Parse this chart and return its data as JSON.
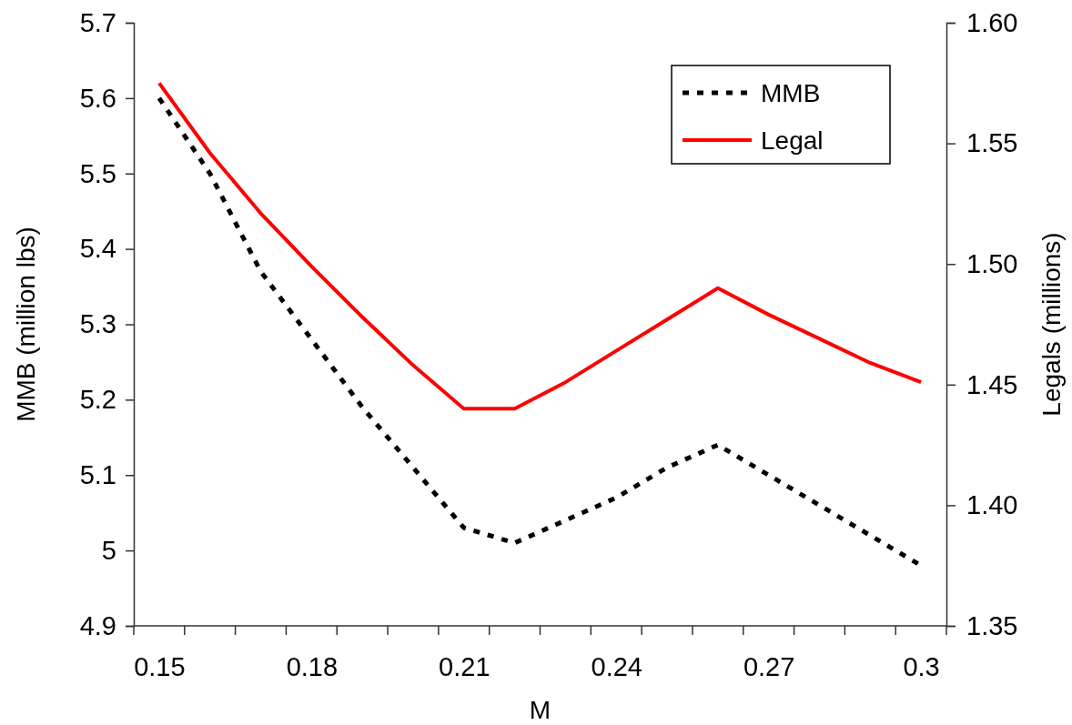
{
  "chart_data": {
    "type": "line",
    "xlabel": "M",
    "ylabel": "MMB (million lbs)",
    "y2label": "Legals (millions)",
    "categories": [
      "0.15",
      null,
      null,
      "0.18",
      null,
      null,
      "0.21",
      null,
      null,
      "0.24",
      null,
      null,
      "0.27",
      null,
      null,
      "0.3"
    ],
    "ylim": [
      4.9,
      5.7
    ],
    "yticks": [
      4.9,
      5,
      5.1,
      5.2,
      5.3,
      5.4,
      5.5,
      5.6,
      5.7
    ],
    "y2lim": [
      1.35,
      1.6
    ],
    "y2ticks": [
      1.35,
      {
        "value": 1.4,
        "label": "1.40"
      },
      1.45,
      {
        "value": 1.5,
        "label": "1.50"
      },
      1.55,
      {
        "value": 1.6,
        "label": "1.60"
      }
    ],
    "series": [
      {
        "name": "MMB",
        "color": "#000000",
        "line_style": "dotted",
        "axis": "y",
        "values": [
          5.6,
          5.5,
          5.37,
          5.28,
          5.19,
          5.11,
          5.03,
          5.01,
          5.04,
          5.07,
          5.11,
          5.14,
          5.1,
          5.06,
          5.02,
          4.98
        ]
      },
      {
        "name": "Legal",
        "color": "#ff0000",
        "line_style": "solid",
        "axis": "y2",
        "values": [
          1.575,
          1.546,
          1.521,
          1.499,
          1.478,
          1.458,
          1.44,
          1.44,
          1.451,
          1.464,
          1.477,
          1.49,
          1.479,
          1.469,
          1.459,
          1.451
        ]
      }
    ],
    "legend": "top right",
    "grid": false,
    "marker": "none"
  }
}
